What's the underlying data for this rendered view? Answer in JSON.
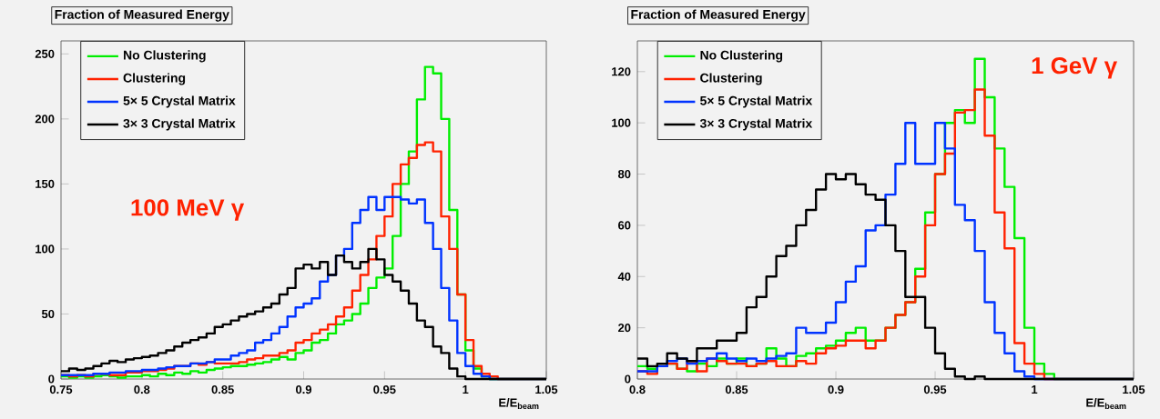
{
  "chart_data": [
    {
      "type": "histogram",
      "title": "Fraction of Measured Energy",
      "xlabel": "E/E$_{beam}$",
      "annotations": [
        "100 MeV γ"
      ],
      "legend": "top left",
      "xlim": [
        0.75,
        1.05
      ],
      "ylim": [
        0,
        260
      ],
      "xticks": [
        0.75,
        0.8,
        0.85,
        0.9,
        0.95,
        1,
        1.05
      ],
      "yticks": [
        0,
        50,
        100,
        150,
        200,
        250
      ],
      "bins": [
        0.75,
        0.755,
        0.76,
        0.765,
        0.77,
        0.775,
        0.78,
        0.785,
        0.79,
        0.795,
        0.8,
        0.805,
        0.81,
        0.815,
        0.82,
        0.825,
        0.83,
        0.835,
        0.84,
        0.845,
        0.85,
        0.855,
        0.86,
        0.865,
        0.87,
        0.875,
        0.88,
        0.885,
        0.89,
        0.895,
        0.9,
        0.905,
        0.91,
        0.915,
        0.92,
        0.925,
        0.93,
        0.935,
        0.94,
        0.945,
        0.95,
        0.955,
        0.96,
        0.965,
        0.97,
        0.975,
        0.98,
        0.985,
        0.99,
        0.995,
        1,
        1.005,
        1.01,
        1.015,
        1.02,
        1.025,
        1.03,
        1.035,
        1.04,
        1.045,
        1.05
      ],
      "series": [
        {
          "name": "No Clustering",
          "color": "#00ee00",
          "values": [
            2,
            1,
            2,
            1,
            2,
            3,
            2,
            1,
            2,
            2,
            3,
            2,
            4,
            3,
            5,
            4,
            6,
            5,
            7,
            8,
            9,
            10,
            10,
            11,
            12,
            13,
            15,
            17,
            15,
            20,
            22,
            28,
            30,
            35,
            42,
            45,
            50,
            58,
            70,
            78,
            85,
            110,
            150,
            175,
            215,
            240,
            235,
            200,
            130,
            65,
            22,
            8,
            2,
            0,
            0,
            0,
            0,
            0,
            0,
            0
          ]
        },
        {
          "name": "Clustering",
          "color": "#ff2200",
          "values": [
            3,
            2,
            3,
            2,
            4,
            4,
            3,
            3,
            5,
            5,
            6,
            6,
            7,
            8,
            10,
            10,
            12,
            11,
            13,
            12,
            12,
            12,
            13,
            15,
            16,
            18,
            18,
            20,
            22,
            28,
            30,
            35,
            38,
            42,
            48,
            55,
            68,
            80,
            92,
            110,
            125,
            150,
            165,
            170,
            180,
            182,
            175,
            125,
            100,
            65,
            30,
            10,
            4,
            2,
            0,
            0,
            0,
            0,
            0,
            0
          ]
        },
        {
          "name": "5× 5 Crystal Matrix",
          "color": "#0033ff",
          "values": [
            3,
            3,
            3,
            3,
            4,
            4,
            5,
            5,
            6,
            6,
            7,
            7,
            8,
            9,
            10,
            10,
            12,
            12,
            13,
            15,
            15,
            18,
            20,
            22,
            28,
            30,
            35,
            40,
            48,
            55,
            58,
            62,
            75,
            80,
            95,
            100,
            120,
            130,
            140,
            130,
            140,
            140,
            138,
            135,
            138,
            120,
            100,
            70,
            45,
            20,
            10,
            4,
            2,
            0,
            0,
            0,
            0,
            0,
            0,
            0
          ]
        },
        {
          "name": "3× 3 Crystal Matrix",
          "color": "#000000",
          "values": [
            6,
            8,
            7,
            8,
            10,
            12,
            14,
            13,
            15,
            16,
            17,
            18,
            20,
            22,
            25,
            28,
            30,
            32,
            35,
            40,
            42,
            45,
            48,
            50,
            52,
            55,
            58,
            65,
            70,
            85,
            88,
            85,
            90,
            80,
            95,
            90,
            85,
            90,
            100,
            92,
            80,
            75,
            68,
            58,
            45,
            40,
            25,
            20,
            8,
            2,
            0,
            0,
            0,
            0,
            0,
            0,
            0,
            0,
            0,
            0
          ]
        }
      ]
    },
    {
      "type": "histogram",
      "title": "Fraction of Measured Energy",
      "xlabel": "E/E$_{beam}$",
      "annotations": [
        "1 GeV γ"
      ],
      "legend": "top left",
      "xlim": [
        0.8,
        1.05
      ],
      "ylim": [
        0,
        132
      ],
      "xticks": [
        0.8,
        0.85,
        0.9,
        0.95,
        1,
        1.05
      ],
      "yticks": [
        0,
        20,
        40,
        60,
        80,
        100,
        120
      ],
      "bins": [
        0.8,
        0.805,
        0.81,
        0.815,
        0.82,
        0.825,
        0.83,
        0.835,
        0.84,
        0.845,
        0.85,
        0.855,
        0.86,
        0.865,
        0.87,
        0.875,
        0.88,
        0.885,
        0.89,
        0.895,
        0.9,
        0.905,
        0.91,
        0.915,
        0.92,
        0.925,
        0.93,
        0.935,
        0.94,
        0.945,
        0.95,
        0.955,
        0.96,
        0.965,
        0.97,
        0.975,
        0.98,
        0.985,
        0.99,
        0.995,
        1,
        1.005,
        1.01,
        1.015,
        1.02,
        1.025,
        1.03,
        1.035,
        1.04,
        1.045,
        1.05
      ],
      "series": [
        {
          "name": "No Clustering",
          "color": "#00ee00",
          "values": [
            5,
            4,
            5,
            6,
            4,
            3,
            6,
            5,
            8,
            6,
            8,
            5,
            6,
            12,
            8,
            5,
            9,
            10,
            12,
            13,
            15,
            18,
            20,
            15,
            15,
            20,
            25,
            30,
            43,
            65,
            80,
            100,
            105,
            100,
            125,
            110,
            90,
            75,
            55,
            20,
            6,
            2,
            0,
            0,
            0,
            0,
            0,
            0,
            0,
            0
          ]
        },
        {
          "name": "Clustering",
          "color": "#ff2200",
          "values": [
            3,
            2,
            5,
            6,
            4,
            7,
            3,
            8,
            7,
            6,
            6,
            5,
            6,
            7,
            5,
            5,
            7,
            6,
            10,
            12,
            13,
            15,
            15,
            12,
            15,
            20,
            25,
            30,
            40,
            60,
            80,
            88,
            104,
            105,
            113,
            95,
            65,
            51,
            14,
            6,
            2,
            0,
            0,
            0,
            0,
            0,
            0,
            0,
            0,
            0
          ]
        },
        {
          "name": "5× 5 Crystal Matrix",
          "color": "#0033ff",
          "values": [
            3,
            3,
            5,
            7,
            8,
            6,
            7,
            8,
            10,
            8,
            7,
            8,
            7,
            8,
            9,
            10,
            20,
            18,
            18,
            22,
            30,
            38,
            44,
            58,
            60,
            72,
            84,
            100,
            84,
            84,
            100,
            90,
            68,
            62,
            50,
            30,
            18,
            10,
            3,
            1,
            0,
            0,
            0,
            0,
            0,
            0,
            0,
            0,
            0,
            0
          ]
        },
        {
          "name": "3× 3 Crystal Matrix",
          "color": "#000000",
          "values": [
            8,
            5,
            6,
            10,
            8,
            7,
            12,
            12,
            15,
            15,
            18,
            28,
            32,
            40,
            48,
            52,
            60,
            66,
            74,
            80,
            78,
            80,
            76,
            72,
            70,
            60,
            50,
            32,
            32,
            20,
            10,
            4,
            1,
            0,
            1,
            0,
            0,
            0,
            0,
            0,
            0,
            0,
            0,
            0,
            0,
            0,
            0,
            0,
            0,
            0
          ]
        }
      ]
    }
  ]
}
